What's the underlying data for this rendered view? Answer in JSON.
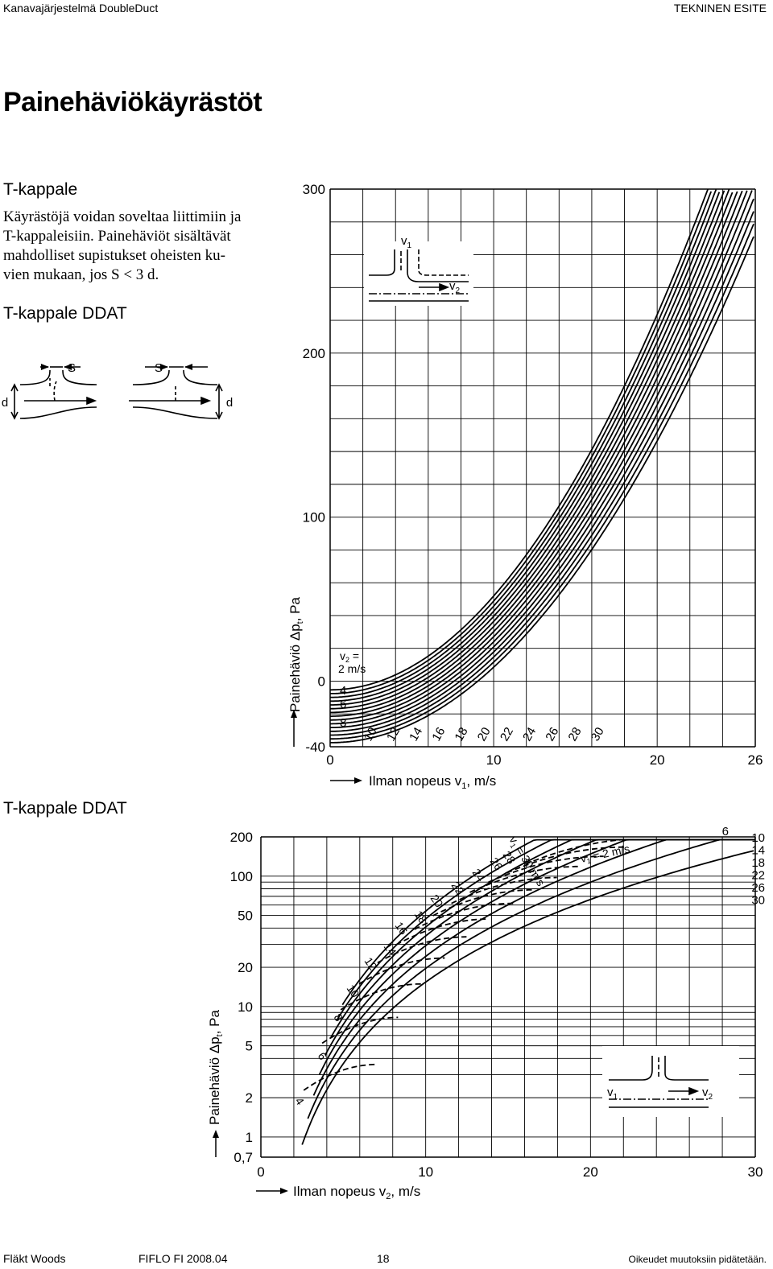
{
  "header": {
    "left": "Kanavajärjestelmä DoubleDuct",
    "right": "TEKNINEN ESITE"
  },
  "page_title": "Painehäviökäyrästöt",
  "intro": {
    "heading": "T-kappale",
    "lines": [
      "Käyrästöjä voidan soveltaa liittimiin ja",
      "T-kappaleisiin. Painehäviöt sisältävät",
      "mahdolliset supistukset oheisten ku-",
      "vien mukaan, jos S < 3 d."
    ]
  },
  "section1_label": "T-kappale DDAT",
  "section2_label": "T-kappale DDAT",
  "schematic": {
    "s_label": "S",
    "d_label": "d",
    "v1": "v",
    "v1_sub": "1",
    "v2": "v",
    "v2_sub": "2"
  },
  "footer": {
    "company": "Fläkt Woods",
    "code": "FIFLO  FI  2008.04",
    "page": "18",
    "note": "Oikeudet muutoksiin pidätetään."
  },
  "chart_data": [
    {
      "type": "line",
      "ylabel": "Painehäviö Δp",
      "ylabel_sub": "t",
      "ylabel_unit": ", Pa",
      "xlabel": "Ilman nopeus v",
      "xlabel_sub": "1",
      "xlabel_unit": ", m/s",
      "x_ticks": [
        "0",
        "10",
        "20",
        "26"
      ],
      "y_ticks": [
        "-40",
        "0",
        "100",
        "200",
        "300"
      ],
      "xlim": [
        0,
        26
      ],
      "ylim": [
        -40,
        300
      ],
      "series_label_prefix": "v",
      "series_label_sub": "2",
      "series_label_eq": " =",
      "first_label_unit": "2 m/s",
      "series_labels": [
        "4",
        "6",
        "8",
        "10",
        "12",
        "14",
        "16",
        "18",
        "20",
        "22",
        "24",
        "26",
        "28",
        "30"
      ],
      "series_v2": [
        2,
        4,
        6,
        8,
        10,
        12,
        14,
        16,
        18,
        20,
        22,
        24,
        26,
        28,
        30
      ],
      "grid": true
    },
    {
      "type": "line",
      "yscale": "log",
      "ylabel": "Painehäviö Δp",
      "ylabel_sub": "t",
      "ylabel_unit": ", Pa",
      "xlabel": "Ilman nopeus v",
      "xlabel_sub": "2",
      "xlabel_unit": ", m/s",
      "x_ticks": [
        "0",
        "10",
        "20",
        "30"
      ],
      "y_ticks": [
        "0,7",
        "1",
        "2",
        "5",
        "10",
        "20",
        "50",
        "100",
        "200"
      ],
      "y_tick_values": [
        0.7,
        1,
        2,
        5,
        10,
        20,
        50,
        100,
        200
      ],
      "xlim": [
        0,
        30
      ],
      "ylim": [
        0.7,
        200
      ],
      "solid_label_top": "v",
      "solid_label_top_sub": "1",
      "solid_label_top_eq": " = 2 m/s",
      "solid_right_labels": [
        "6",
        "10",
        "14",
        "18",
        "22",
        "26",
        "30"
      ],
      "dashed_label_prefix": "v",
      "dashed_label_sub": "1",
      "dashed_label_eq": " = 30 m/s",
      "dashed_labels": [
        "4",
        "6",
        "8",
        "10",
        "12",
        "14",
        "16",
        "18",
        "20",
        "22",
        "24",
        "26",
        "28"
      ],
      "grid": true
    }
  ]
}
